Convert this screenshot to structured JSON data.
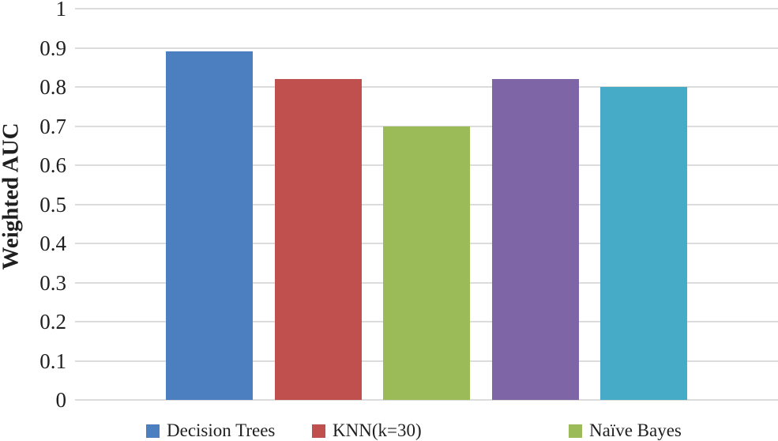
{
  "chart_data": {
    "type": "bar",
    "title": "",
    "xlabel": "",
    "ylabel": "Weighted AUC",
    "ylim": [
      0,
      1
    ],
    "ytick_step": 0.1,
    "yticks": [
      "1",
      "0.9",
      "0.8",
      "0.7",
      "0.6",
      "0.5",
      "0.4",
      "0.3",
      "0.2",
      "0.1",
      "0"
    ],
    "grid": true,
    "legend_position": "bottom",
    "series": [
      {
        "name": "Decision Trees",
        "value": 0.89,
        "color": "#4C7FC0",
        "in_legend": true
      },
      {
        "name": "KNN(k=30)",
        "value": 0.82,
        "color": "#C0504D",
        "in_legend": true
      },
      {
        "name": "Naïve Bayes",
        "value": 0.7,
        "color": "#9BBB59",
        "in_legend": true
      },
      {
        "name": "",
        "value": 0.82,
        "color": "#7E65A5",
        "in_legend": false
      },
      {
        "name": "",
        "value": 0.8,
        "color": "#46ABC7",
        "in_legend": false
      }
    ],
    "colors": {
      "gridline": "#dcdcdc",
      "text": "#1f1f1f",
      "background": "#ffffff"
    }
  }
}
